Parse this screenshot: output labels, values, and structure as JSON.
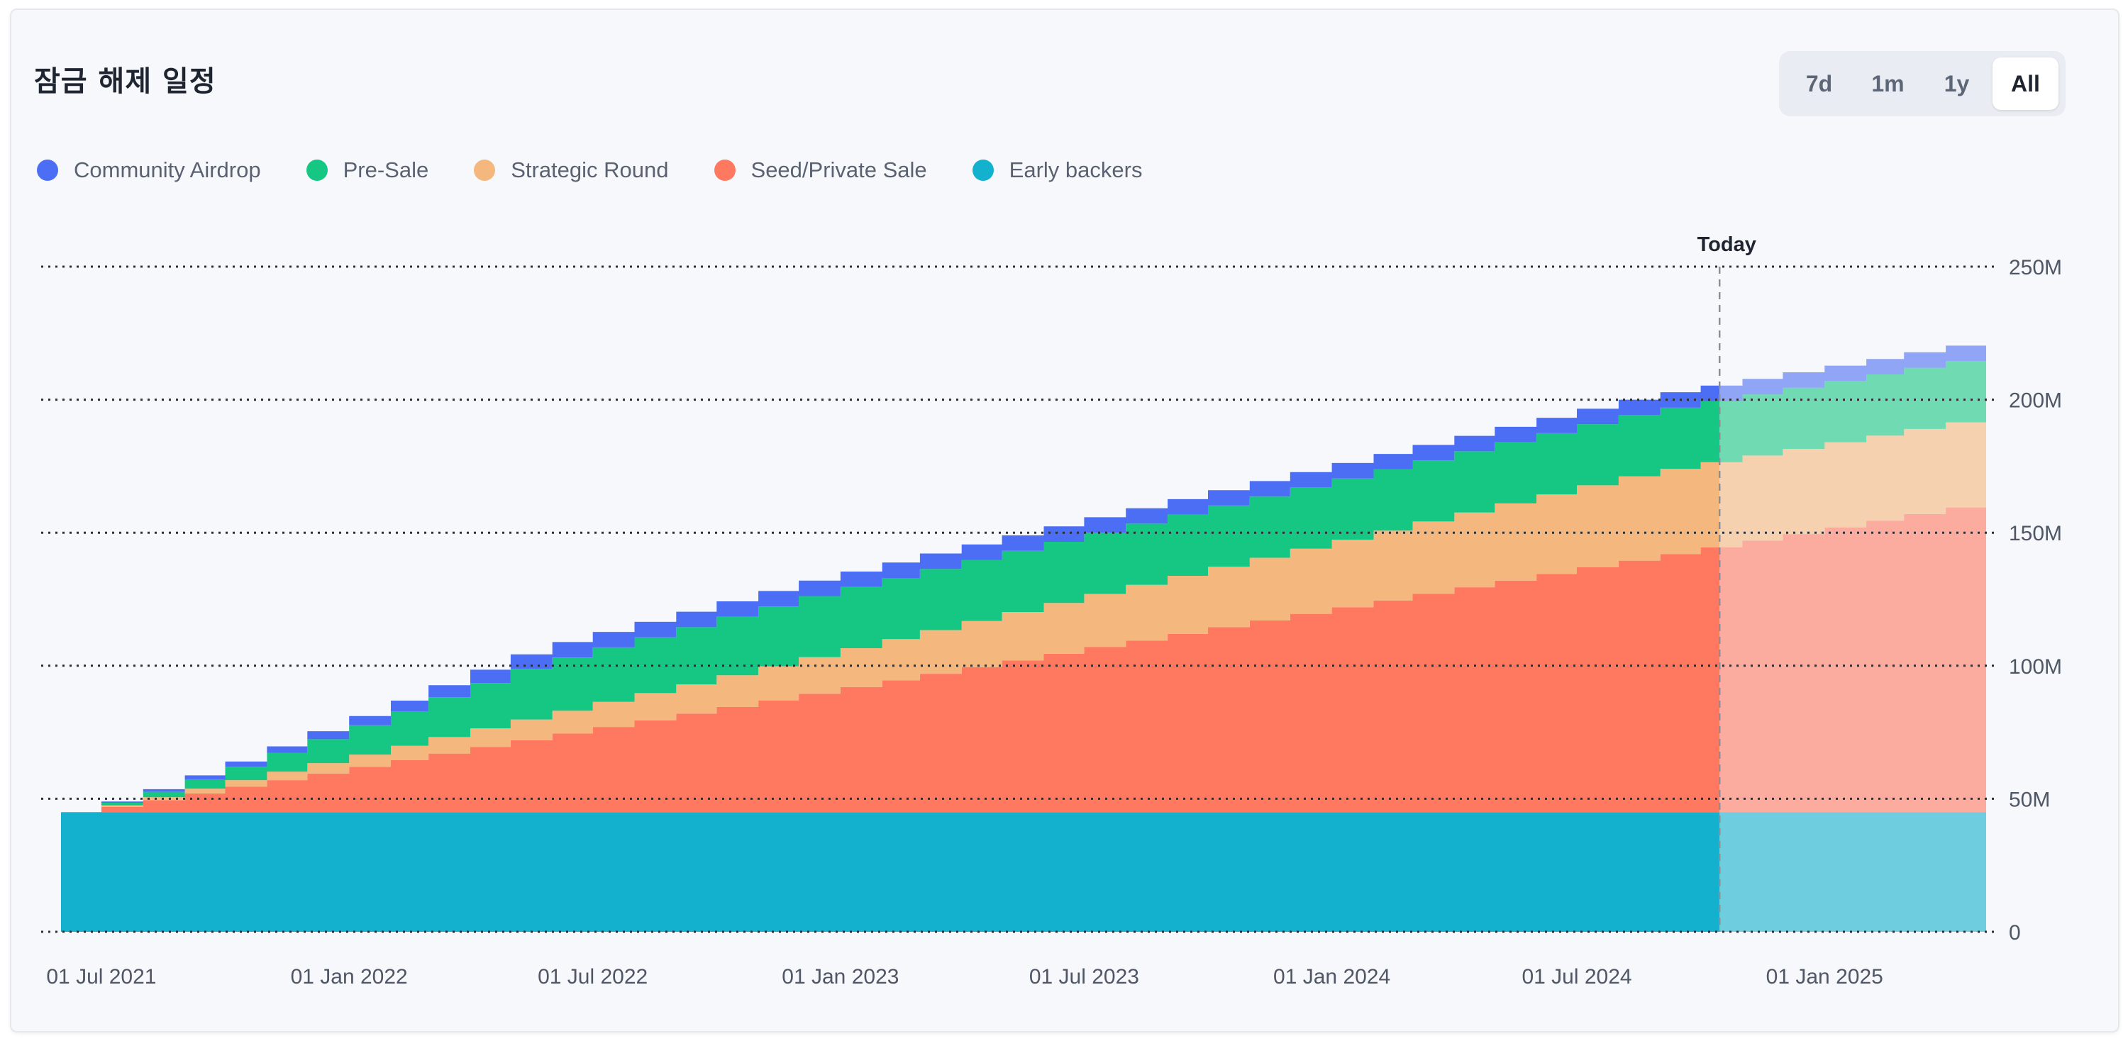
{
  "header": {
    "title": "잠금 해제 일정"
  },
  "range_buttons": [
    {
      "label": "7d",
      "active": false
    },
    {
      "label": "1m",
      "active": false
    },
    {
      "label": "1y",
      "active": false
    },
    {
      "label": "All",
      "active": true
    }
  ],
  "legend": [
    {
      "label": "Community Airdrop",
      "color": "#4c6ef5"
    },
    {
      "label": "Pre-Sale",
      "color": "#16c784"
    },
    {
      "label": "Strategic Round",
      "color": "#f4b77e"
    },
    {
      "label": "Seed/Private Sale",
      "color": "#ff7961"
    },
    {
      "label": "Early backers",
      "color": "#14b1cf"
    }
  ],
  "chart_data": {
    "type": "area",
    "stacked": true,
    "step": true,
    "x_type": "time",
    "x_domain": [
      "2021-06-01",
      "2025-05-01"
    ],
    "today": "2024-10-15",
    "today_label": "Today",
    "ylim": [
      0,
      250000000
    ],
    "yticks": [
      0,
      50000000,
      100000000,
      150000000,
      200000000,
      250000000
    ],
    "ytick_labels": [
      "0",
      "50M",
      "100M",
      "150M",
      "200M",
      "250M"
    ],
    "xticks": [
      "2021-07-01",
      "2022-01-01",
      "2022-07-01",
      "2023-01-01",
      "2023-07-01",
      "2024-01-01",
      "2024-07-01",
      "2025-01-01"
    ],
    "xtick_labels": [
      "01 Jul 2021",
      "01 Jan 2022",
      "01 Jul 2022",
      "01 Jan 2023",
      "01 Jul 2023",
      "01 Jan 2024",
      "01 Jul 2024",
      "01 Jan 2025"
    ],
    "grid": true,
    "legend_position": "top-left",
    "series_order_bottom_to_top": [
      "Early backers",
      "Seed/Private Sale",
      "Strategic Round",
      "Pre-Sale",
      "Community Airdrop"
    ],
    "dates": [
      "2021-06-01",
      "2021-07-01",
      "2021-08-01",
      "2021-09-01",
      "2021-10-01",
      "2021-11-01",
      "2021-12-01",
      "2022-01-01",
      "2022-02-01",
      "2022-03-01",
      "2022-04-01",
      "2022-05-01",
      "2022-06-01",
      "2022-07-01",
      "2022-08-01",
      "2022-09-01",
      "2022-10-01",
      "2022-11-01",
      "2022-12-01",
      "2023-01-01",
      "2023-02-01",
      "2023-03-01",
      "2023-04-01",
      "2023-05-01",
      "2023-06-01",
      "2023-07-01",
      "2023-08-01",
      "2023-09-01",
      "2023-10-01",
      "2023-11-01",
      "2023-12-01",
      "2024-01-01",
      "2024-02-01",
      "2024-03-01",
      "2024-04-01",
      "2024-05-01",
      "2024-06-01",
      "2024-07-01",
      "2024-08-01",
      "2024-09-01",
      "2024-10-01",
      "2024-11-01",
      "2024-12-01",
      "2025-01-01",
      "2025-02-01",
      "2025-03-01",
      "2025-04-01",
      "2025-05-01"
    ],
    "series": [
      {
        "name": "Early backers",
        "color": "#14b1cf",
        "values": [
          45000000,
          45000000,
          45000000,
          45000000,
          45000000,
          45000000,
          45000000,
          45000000,
          45000000,
          45000000,
          45000000,
          45000000,
          45000000,
          45000000,
          45000000,
          45000000,
          45000000,
          45000000,
          45000000,
          45000000,
          45000000,
          45000000,
          45000000,
          45000000,
          45000000,
          45000000,
          45000000,
          45000000,
          45000000,
          45000000,
          45000000,
          45000000,
          45000000,
          45000000,
          45000000,
          45000000,
          45000000,
          45000000,
          45000000,
          45000000,
          45000000,
          45000000,
          45000000,
          45000000,
          45000000,
          45000000,
          45000000,
          45000000
        ]
      },
      {
        "name": "Seed/Private Sale",
        "color": "#ff7961",
        "values": [
          0,
          2000000,
          4500000,
          7000000,
          9500000,
          12000000,
          14500000,
          17000000,
          19500000,
          22000000,
          24500000,
          27000000,
          29500000,
          32000000,
          34500000,
          37000000,
          39500000,
          42000000,
          44500000,
          47000000,
          49500000,
          52000000,
          54500000,
          57000000,
          59500000,
          62000000,
          64500000,
          67000000,
          69500000,
          72000000,
          74500000,
          77000000,
          79500000,
          82000000,
          84500000,
          87000000,
          89500000,
          92000000,
          94500000,
          97000000,
          99500000,
          102000000,
          104500000,
          107000000,
          109500000,
          112000000,
          114500000,
          116000000
        ]
      },
      {
        "name": "Strategic Round",
        "color": "#f4b77e",
        "values": [
          0,
          500000,
          1100000,
          1800000,
          2500000,
          3200000,
          3900000,
          4600000,
          5400000,
          6200000,
          7000000,
          7800000,
          8600000,
          9400000,
          10200000,
          11000000,
          11900000,
          12800000,
          13700000,
          14600000,
          15500000,
          16400000,
          17300000,
          18200000,
          19100000,
          20000000,
          20900000,
          21800000,
          22700000,
          23600000,
          24500000,
          25400000,
          26300000,
          27200000,
          28100000,
          29000000,
          29900000,
          30800000,
          31700000,
          32000000,
          32000000,
          32000000,
          32000000,
          32000000,
          32000000,
          32000000,
          32000000,
          32000000
        ]
      },
      {
        "name": "Pre-Sale",
        "color": "#16c784",
        "values": [
          0,
          1000000,
          2000000,
          3500000,
          5000000,
          7000000,
          9000000,
          11000000,
          13000000,
          15000000,
          17000000,
          19000000,
          20000000,
          20500000,
          21000000,
          21500000,
          22000000,
          22500000,
          23000000,
          23000000,
          23000000,
          23000000,
          23000000,
          23000000,
          23000000,
          23000000,
          23000000,
          23000000,
          23000000,
          23000000,
          23000000,
          23000000,
          23000000,
          23000000,
          23000000,
          23000000,
          23000000,
          23000000,
          23000000,
          23000000,
          23000000,
          23000000,
          23000000,
          23000000,
          23000000,
          23000000,
          23000000,
          23000000
        ]
      },
      {
        "name": "Community Airdrop",
        "color": "#4c6ef5",
        "values": [
          0,
          500000,
          1000000,
          1500000,
          2000000,
          2500000,
          3000000,
          3500000,
          4000000,
          4500000,
          5000000,
          5500000,
          5800000,
          5800000,
          5800000,
          5800000,
          5800000,
          5800000,
          5800000,
          5800000,
          5800000,
          5800000,
          5800000,
          5800000,
          5800000,
          5800000,
          5800000,
          5800000,
          5800000,
          5800000,
          5800000,
          5800000,
          5800000,
          5800000,
          5800000,
          5800000,
          5800000,
          5800000,
          5800000,
          5800000,
          5800000,
          5800000,
          5800000,
          5800000,
          5800000,
          5800000,
          5800000,
          5800000
        ]
      }
    ]
  }
}
